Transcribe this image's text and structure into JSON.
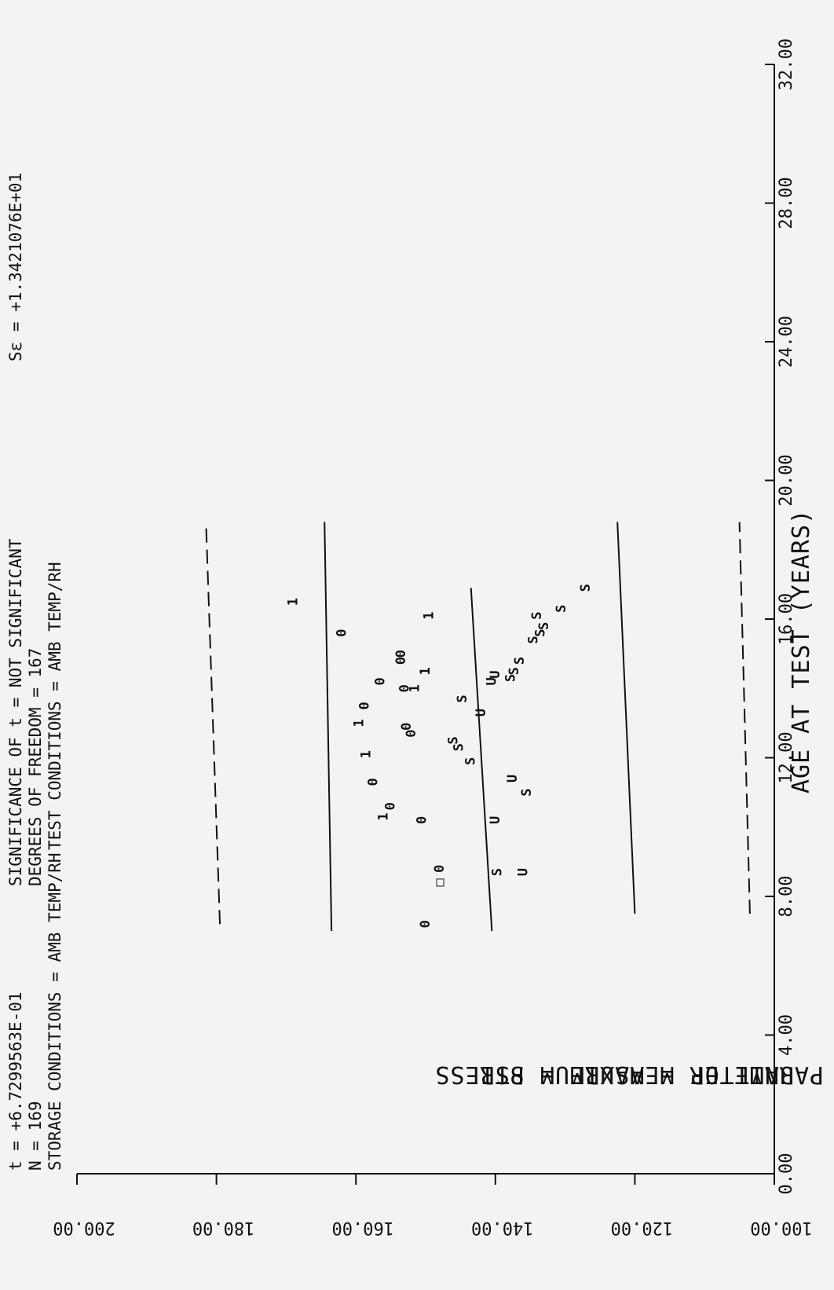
{
  "header": {
    "line1_left": "t = +6.7299563E-01",
    "line1_mid": "SIGNIFICANCE OF t = NOT SIGNIFICANT",
    "line1_right": "Sε = +1.3421076E+01",
    "line2_left": "N = 169",
    "line2_mid": "DEGREES OF FREEDOM = 167",
    "line3_left": "STORAGE CONDITIONS = AMB TEMP/RH",
    "line3_right": "TEST CONDITIONS = AMB TEMP/RH"
  },
  "chart_data": {
    "type": "scatter",
    "title": "",
    "xlabel": "AGE AT TEST (YEARS)",
    "ylabel_line1": "PARAMETER = MAXIMUM STRESS",
    "ylabel_line2": "UNIT OF MEASURE = PSI",
    "xlim": [
      0,
      32
    ],
    "ylim": [
      100,
      200
    ],
    "x_ticks": [
      "0.00",
      "4.00",
      "8.00",
      "12.00",
      "16.00",
      "20.00",
      "24.00",
      "28.00",
      "32.00"
    ],
    "y_ticks": [
      "100.00",
      "120.00",
      "140.00",
      "160.00",
      "180.00",
      "200.00"
    ],
    "lines": [
      {
        "style": "dashed",
        "x": [
          7.2,
          18.8
        ],
        "y": [
          179.5,
          181.5
        ]
      },
      {
        "style": "solid",
        "x": [
          7.0,
          18.8
        ],
        "y": [
          163.5,
          164.5
        ]
      },
      {
        "style": "solid",
        "x": [
          7.0,
          16.9
        ],
        "y": [
          140.5,
          143.5
        ]
      },
      {
        "style": "solid",
        "x": [
          7.5,
          18.8
        ],
        "y": [
          120.0,
          122.5
        ]
      },
      {
        "style": "dashed",
        "x": [
          7.5,
          18.8
        ],
        "y": [
          103.5,
          105.0
        ]
      }
    ],
    "points": [
      {
        "x": 7.2,
        "y": 150.0,
        "label": "0"
      },
      {
        "x": 8.8,
        "y": 148.0,
        "label": "0"
      },
      {
        "x": 10.2,
        "y": 150.5,
        "label": "0"
      },
      {
        "x": 10.6,
        "y": 155.0,
        "label": "0"
      },
      {
        "x": 11.3,
        "y": 157.5,
        "label": "0"
      },
      {
        "x": 12.7,
        "y": 152.0,
        "label": "0"
      },
      {
        "x": 12.9,
        "y": 152.7,
        "label": "0"
      },
      {
        "x": 13.5,
        "y": 158.7,
        "label": "0"
      },
      {
        "x": 14.0,
        "y": 153.0,
        "label": "0"
      },
      {
        "x": 14.2,
        "y": 156.5,
        "label": "0"
      },
      {
        "x": 14.8,
        "y": 153.5,
        "label": "0"
      },
      {
        "x": 15.0,
        "y": 153.5,
        "label": "0"
      },
      {
        "x": 15.6,
        "y": 162.0,
        "label": "0"
      },
      {
        "x": 10.3,
        "y": 156.0,
        "label": "1"
      },
      {
        "x": 12.1,
        "y": 158.5,
        "label": "1"
      },
      {
        "x": 13.0,
        "y": 159.5,
        "label": "1"
      },
      {
        "x": 14.0,
        "y": 151.5,
        "label": "1"
      },
      {
        "x": 14.5,
        "y": 150.0,
        "label": "1"
      },
      {
        "x": 16.1,
        "y": 149.5,
        "label": "1"
      },
      {
        "x": 16.5,
        "y": 169.0,
        "label": "1"
      },
      {
        "x": 8.4,
        "y": 148.0,
        "label": "□"
      },
      {
        "x": 8.7,
        "y": 136.0,
        "label": "U"
      },
      {
        "x": 10.2,
        "y": 140.0,
        "label": "U"
      },
      {
        "x": 11.4,
        "y": 137.5,
        "label": "U"
      },
      {
        "x": 13.3,
        "y": 142.0,
        "label": "U"
      },
      {
        "x": 14.2,
        "y": 140.5,
        "label": "U"
      },
      {
        "x": 14.4,
        "y": 140.0,
        "label": "U"
      },
      {
        "x": 8.7,
        "y": 139.7,
        "label": "S"
      },
      {
        "x": 11.0,
        "y": 135.5,
        "label": "S"
      },
      {
        "x": 11.9,
        "y": 143.5,
        "label": "S"
      },
      {
        "x": 12.3,
        "y": 145.2,
        "label": "S"
      },
      {
        "x": 12.5,
        "y": 146.0,
        "label": "S"
      },
      {
        "x": 13.7,
        "y": 144.7,
        "label": "S"
      },
      {
        "x": 14.3,
        "y": 137.8,
        "label": "S"
      },
      {
        "x": 14.5,
        "y": 137.3,
        "label": "S"
      },
      {
        "x": 14.8,
        "y": 136.5,
        "label": "S"
      },
      {
        "x": 15.4,
        "y": 134.5,
        "label": "S"
      },
      {
        "x": 15.6,
        "y": 133.5,
        "label": "S"
      },
      {
        "x": 15.8,
        "y": 133.0,
        "label": "S"
      },
      {
        "x": 16.1,
        "y": 134.0,
        "label": "S"
      },
      {
        "x": 16.3,
        "y": 130.5,
        "label": "S"
      },
      {
        "x": 16.9,
        "y": 127.0,
        "label": "S"
      }
    ]
  }
}
